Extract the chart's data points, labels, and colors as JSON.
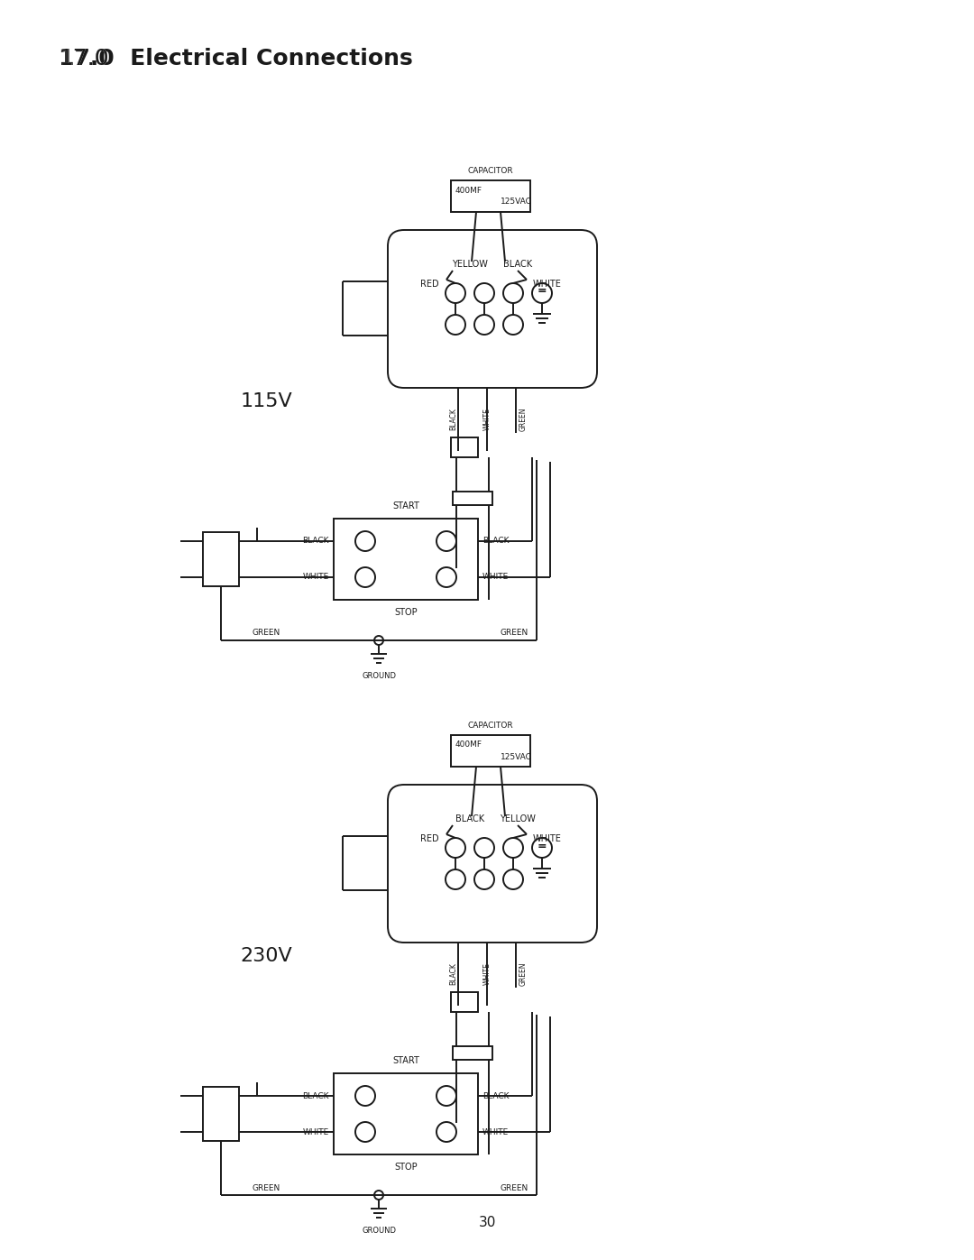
{
  "title_prefix": "17.0",
  "title_bold": "  Electrical Connections",
  "page_number": "30",
  "bg": "#ffffff",
  "lc": "#1a1a1a",
  "diagram1": {
    "voltage": "115V",
    "cap_label": "CAPACITOR",
    "cap_mf": "400MF",
    "cap_vac": "125VAC",
    "motor_label1": "YELLOW",
    "motor_label2": "BLACK",
    "motor_label3": "RED",
    "motor_label4": "WHITE",
    "v_label1": "BLACK",
    "v_label2": "WHITE",
    "v_label3": "GREEN",
    "sw_start": "START",
    "sw_stop": "STOP",
    "sw_left1": "BLACK",
    "sw_left2": "WHITE",
    "sw_right1": "BLACK",
    "sw_right2": "WHITE",
    "gr_left": "GREEN",
    "gr_right": "GREEN",
    "ground": "GROUND"
  },
  "diagram2": {
    "voltage": "230V",
    "cap_label": "CAPACITOR",
    "cap_mf": "400MF",
    "cap_vac": "125VAC",
    "motor_label1": "BLACK",
    "motor_label2": "YELLOW",
    "motor_label3": "RED",
    "motor_label4": "WHITE",
    "v_label1": "BLACK",
    "v_label2": "WHITE",
    "v_label3": "GREEN",
    "sw_start": "START",
    "sw_stop": "STOP",
    "sw_left1": "BLACK",
    "sw_left2": "WHITE",
    "sw_right1": "BLACK",
    "sw_right2": "WHITE",
    "gr_left": "GREEN",
    "gr_right": "GREEN",
    "ground": "GROUND"
  }
}
